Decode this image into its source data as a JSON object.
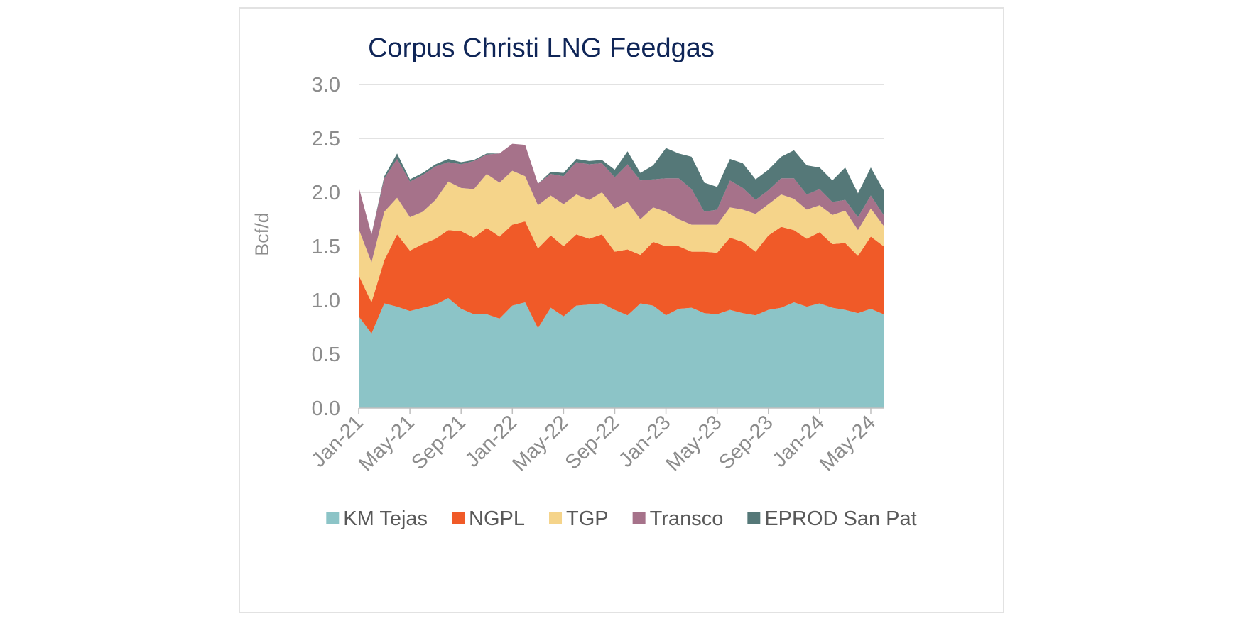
{
  "chart_data": {
    "type": "area",
    "stacked": true,
    "title": "Corpus Christi LNG Feedgas",
    "xlabel": "",
    "ylabel": "Bcf/d",
    "ylim": [
      0,
      3.0
    ],
    "yticks": [
      "0.0",
      "0.5",
      "1.0",
      "1.5",
      "2.0",
      "2.5",
      "3.0"
    ],
    "grid": true,
    "legend_position": "bottom",
    "x": [
      "Jan-21",
      "Feb-21",
      "Mar-21",
      "Apr-21",
      "May-21",
      "Jun-21",
      "Jul-21",
      "Aug-21",
      "Sep-21",
      "Oct-21",
      "Nov-21",
      "Dec-21",
      "Jan-22",
      "Feb-22",
      "Mar-22",
      "Apr-22",
      "May-22",
      "Jun-22",
      "Jul-22",
      "Aug-22",
      "Sep-22",
      "Oct-22",
      "Nov-22",
      "Dec-22",
      "Jan-23",
      "Feb-23",
      "Mar-23",
      "Apr-23",
      "May-23",
      "Jun-23",
      "Jul-23",
      "Aug-23",
      "Sep-23",
      "Oct-23",
      "Nov-23",
      "Dec-23",
      "Jan-24",
      "Feb-24",
      "Mar-24",
      "Apr-24",
      "May-24",
      "Jun-24"
    ],
    "x_tick_labels": [
      "Jan-21",
      "May-21",
      "Sep-21",
      "Jan-22",
      "May-22",
      "Sep-22",
      "Jan-23",
      "May-23",
      "Sep-23",
      "Jan-24",
      "May-24"
    ],
    "series": [
      {
        "name": "KM Tejas",
        "color": "#8cc4c7",
        "values": [
          0.85,
          0.69,
          0.97,
          0.94,
          0.9,
          0.93,
          0.96,
          1.02,
          0.92,
          0.87,
          0.87,
          0.83,
          0.95,
          0.98,
          0.74,
          0.93,
          0.85,
          0.95,
          0.96,
          0.97,
          0.91,
          0.86,
          0.97,
          0.95,
          0.86,
          0.92,
          0.93,
          0.88,
          0.87,
          0.91,
          0.88,
          0.86,
          0.91,
          0.93,
          0.98,
          0.94,
          0.97,
          0.93,
          0.91,
          0.88,
          0.92,
          0.87
        ]
      },
      {
        "name": "NGPL",
        "color": "#f05a28",
        "values": [
          0.38,
          0.29,
          0.4,
          0.67,
          0.56,
          0.59,
          0.61,
          0.63,
          0.72,
          0.71,
          0.8,
          0.76,
          0.75,
          0.75,
          0.74,
          0.67,
          0.65,
          0.66,
          0.61,
          0.64,
          0.54,
          0.61,
          0.45,
          0.59,
          0.64,
          0.58,
          0.52,
          0.57,
          0.57,
          0.67,
          0.66,
          0.59,
          0.69,
          0.75,
          0.67,
          0.63,
          0.66,
          0.59,
          0.62,
          0.53,
          0.67,
          0.63
        ]
      },
      {
        "name": "TGP",
        "color": "#f5d48a",
        "values": [
          0.43,
          0.37,
          0.45,
          0.34,
          0.31,
          0.3,
          0.36,
          0.45,
          0.4,
          0.45,
          0.5,
          0.5,
          0.5,
          0.42,
          0.4,
          0.37,
          0.39,
          0.37,
          0.36,
          0.39,
          0.4,
          0.44,
          0.33,
          0.32,
          0.32,
          0.25,
          0.25,
          0.25,
          0.26,
          0.28,
          0.3,
          0.35,
          0.29,
          0.3,
          0.29,
          0.27,
          0.25,
          0.27,
          0.3,
          0.24,
          0.26,
          0.19
        ]
      },
      {
        "name": "Transco",
        "color": "#a6728a",
        "values": [
          0.39,
          0.26,
          0.31,
          0.36,
          0.33,
          0.34,
          0.31,
          0.18,
          0.22,
          0.26,
          0.18,
          0.27,
          0.25,
          0.29,
          0.2,
          0.2,
          0.26,
          0.3,
          0.33,
          0.27,
          0.29,
          0.35,
          0.36,
          0.26,
          0.31,
          0.38,
          0.33,
          0.12,
          0.14,
          0.25,
          0.2,
          0.13,
          0.13,
          0.15,
          0.19,
          0.14,
          0.15,
          0.12,
          0.1,
          0.12,
          0.12,
          0.1
        ]
      },
      {
        "name": "EPROD San Pat",
        "color": "#557878",
        "values": [
          0.0,
          0.0,
          0.02,
          0.05,
          0.02,
          0.02,
          0.02,
          0.03,
          0.02,
          0.01,
          0.01,
          0.0,
          0.0,
          0.0,
          0.0,
          0.02,
          0.03,
          0.03,
          0.03,
          0.03,
          0.07,
          0.12,
          0.07,
          0.13,
          0.28,
          0.23,
          0.3,
          0.27,
          0.21,
          0.2,
          0.23,
          0.19,
          0.19,
          0.2,
          0.26,
          0.27,
          0.2,
          0.2,
          0.3,
          0.22,
          0.26,
          0.23
        ]
      }
    ]
  }
}
